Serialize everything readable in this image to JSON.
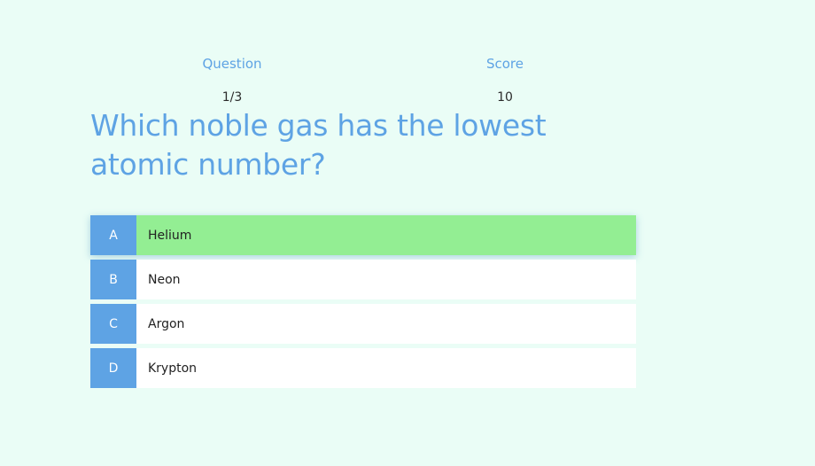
{
  "stats": {
    "question_label": "Question",
    "question_value": "1/3",
    "score_label": "Score",
    "score_value": "10"
  },
  "question": {
    "text": "Which noble gas has the lowest atomic number?"
  },
  "answers": [
    {
      "letter": "A",
      "text": "Helium",
      "selected": true
    },
    {
      "letter": "B",
      "text": "Neon",
      "selected": false
    },
    {
      "letter": "C",
      "text": "Argon",
      "selected": false
    },
    {
      "letter": "D",
      "text": "Krypton",
      "selected": false
    }
  ],
  "colors": {
    "background": "#eafdf6",
    "accent": "#5ea3e4",
    "selected": "#93ee93",
    "answer_bg": "#ffffff"
  }
}
